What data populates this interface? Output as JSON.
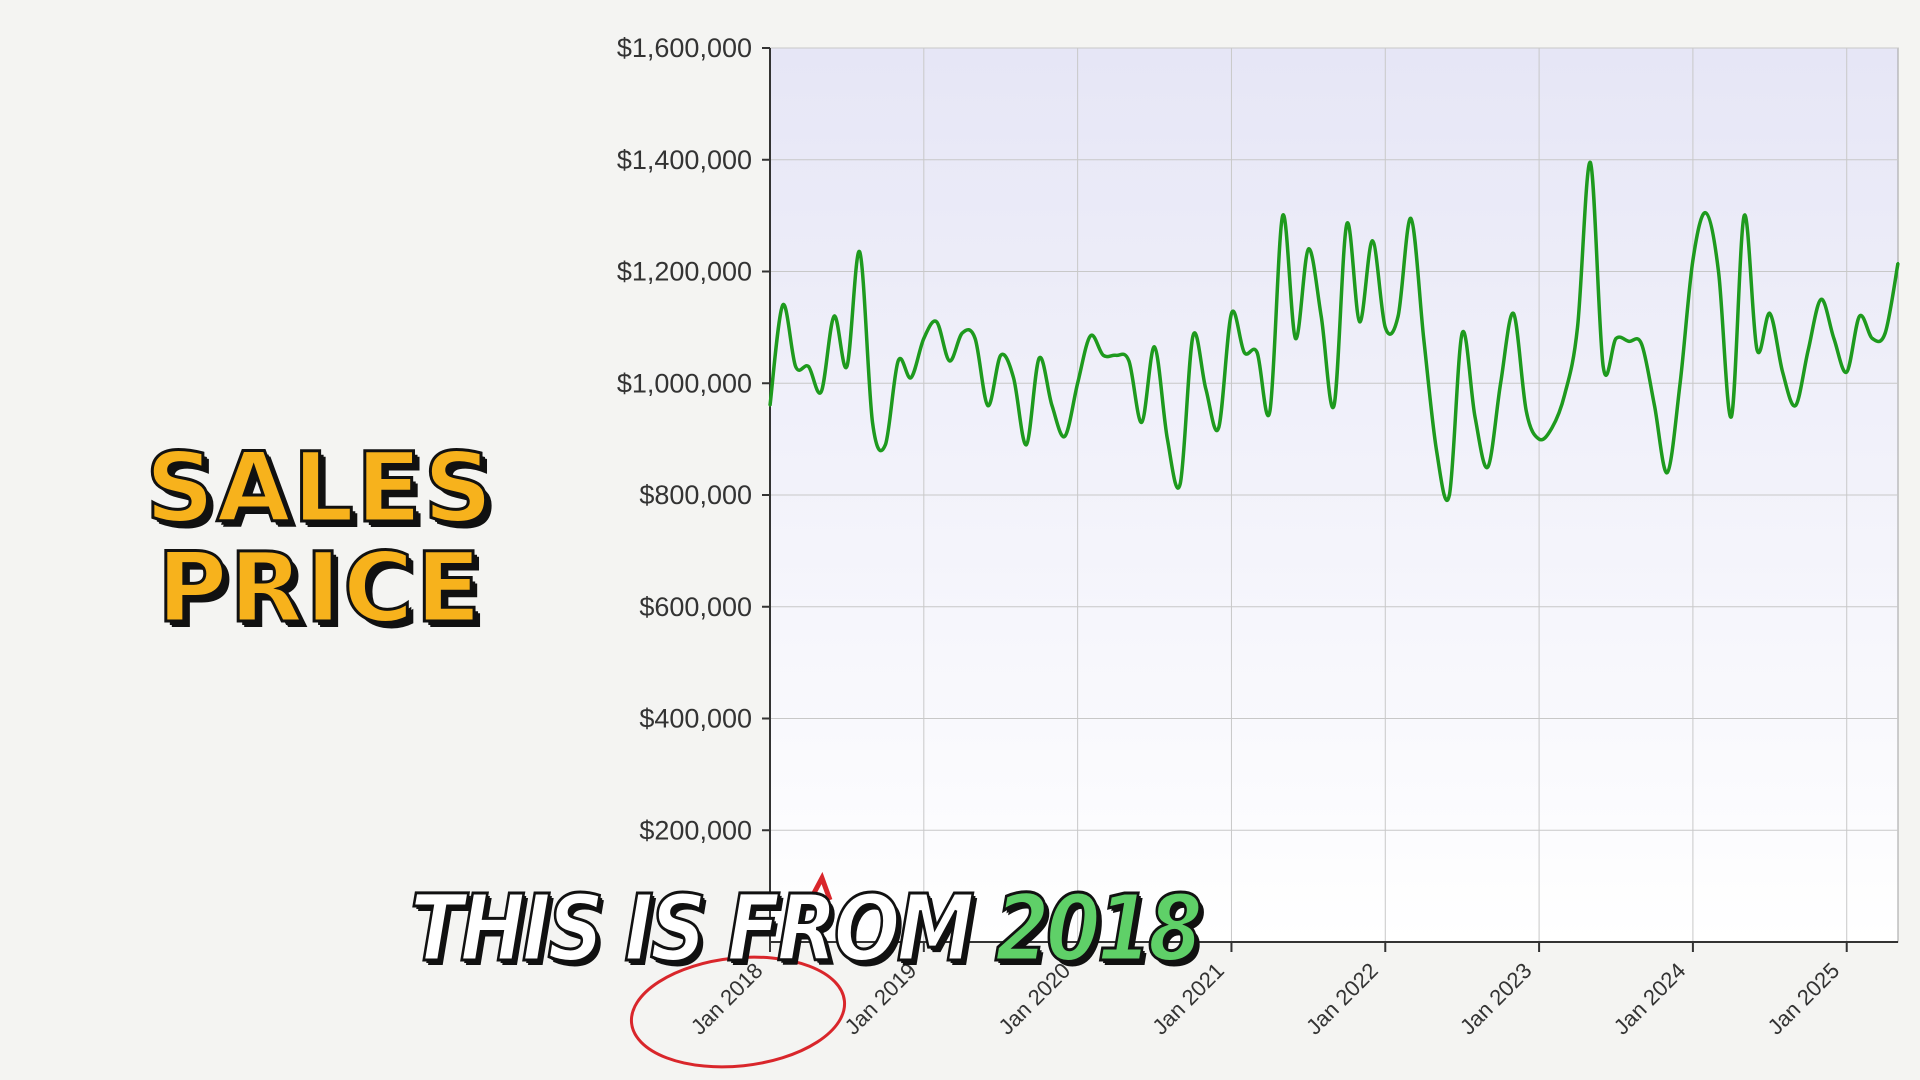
{
  "overlay": {
    "title_line1": "SALES",
    "title_line2": "PRICE",
    "caption_prefix": "THIS IS FROM",
    "caption_year": "2018",
    "title_color": "#f7b21c",
    "caption_accent_color": "#5fd068",
    "circle_color": "#d9262b"
  },
  "chart_data": {
    "type": "line",
    "title": "",
    "xlabel": "",
    "ylabel": "",
    "ylim": [
      0,
      1600000
    ],
    "xlim": [
      "2018-01",
      "2025-05"
    ],
    "y_ticks": [
      "$200,000",
      "$400,000",
      "$600,000",
      "$800,000",
      "$1,000,000",
      "$1,200,000",
      "$1,400,000",
      "$1,600,000"
    ],
    "y_tick_values": [
      200000,
      400000,
      600000,
      800000,
      1000000,
      1200000,
      1400000,
      1600000
    ],
    "x_ticks": [
      "Jan 2018",
      "Jan 2019",
      "Jan 2020",
      "Jan 2021",
      "Jan 2022",
      "Jan 2023",
      "Jan 2024",
      "Jan 2025"
    ],
    "x_tick_values": [
      "2018-01",
      "2019-01",
      "2020-01",
      "2021-01",
      "2022-01",
      "2023-01",
      "2024-01",
      "2025-01"
    ],
    "grid": true,
    "line_color": "#1e9a1e",
    "series": [
      {
        "x": [
          "2018-01",
          "2018-02",
          "2018-03",
          "2018-04",
          "2018-05",
          "2018-06",
          "2018-07",
          "2018-08",
          "2018-09",
          "2018-10",
          "2018-11",
          "2018-12",
          "2019-01",
          "2019-02",
          "2019-03",
          "2019-04",
          "2019-05",
          "2019-06",
          "2019-07",
          "2019-08",
          "2019-09",
          "2019-10",
          "2019-11",
          "2019-12",
          "2020-01",
          "2020-02",
          "2020-03",
          "2020-04",
          "2020-05",
          "2020-06",
          "2020-07",
          "2020-08",
          "2020-09",
          "2020-10",
          "2020-11",
          "2020-12",
          "2021-01",
          "2021-02",
          "2021-03",
          "2021-04",
          "2021-05",
          "2021-06",
          "2021-07",
          "2021-08",
          "2021-09",
          "2021-10",
          "2021-11",
          "2021-12",
          "2022-01",
          "2022-02",
          "2022-03",
          "2022-04",
          "2022-05",
          "2022-06",
          "2022-07",
          "2022-08",
          "2022-09",
          "2022-10",
          "2022-11",
          "2022-12",
          "2023-01",
          "2023-02",
          "2023-03",
          "2023-04",
          "2023-05",
          "2023-06",
          "2023-07",
          "2023-08",
          "2023-09",
          "2023-10",
          "2023-11",
          "2023-12",
          "2024-01",
          "2024-02",
          "2024-03",
          "2024-04",
          "2024-05",
          "2024-06",
          "2024-07",
          "2024-08",
          "2024-09",
          "2024-10",
          "2024-11",
          "2024-12",
          "2025-01",
          "2025-02",
          "2025-03",
          "2025-04",
          "2025-05"
        ],
        "values": [
          960000,
          1140000,
          1030000,
          1030000,
          985000,
          1120000,
          1030000,
          1235000,
          930000,
          890000,
          1040000,
          1010000,
          1080000,
          1110000,
          1040000,
          1090000,
          1080000,
          960000,
          1050000,
          1010000,
          890000,
          1045000,
          960000,
          905000,
          1000000,
          1085000,
          1050000,
          1050000,
          1040000,
          930000,
          1065000,
          900000,
          820000,
          1085000,
          990000,
          920000,
          1125000,
          1055000,
          1055000,
          950000,
          1300000,
          1080000,
          1240000,
          1120000,
          960000,
          1285000,
          1110000,
          1255000,
          1100000,
          1120000,
          1295000,
          1080000,
          880000,
          800000,
          1090000,
          940000,
          850000,
          1000000,
          1125000,
          950000,
          900000,
          920000,
          980000,
          1100000,
          1395000,
          1030000,
          1080000,
          1075000,
          1070000,
          960000,
          840000,
          1000000,
          1220000,
          1305000,
          1200000,
          940000,
          1300000,
          1060000,
          1125000,
          1020000,
          960000,
          1060000,
          1150000,
          1080000,
          1020000,
          1120000,
          1080000,
          1090000,
          1215000
        ]
      }
    ]
  }
}
